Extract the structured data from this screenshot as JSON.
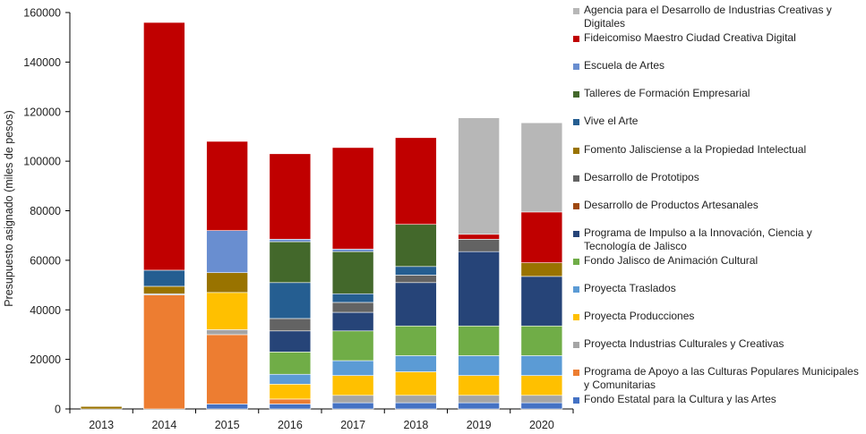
{
  "chart_data": {
    "type": "bar",
    "stacked": true,
    "title": "",
    "xlabel": "",
    "ylabel": "Presupuesto asignado (miles de pesos)",
    "ylim": [
      0,
      160000
    ],
    "yticks": [
      0,
      20000,
      40000,
      60000,
      80000,
      100000,
      120000,
      140000,
      160000
    ],
    "ytick_labels": [
      "0",
      "20000",
      "40000",
      "60000",
      "80000",
      "100000",
      "120000",
      "140000",
      "160000"
    ],
    "grid": false,
    "legend_position": "right",
    "categories": [
      "2013",
      "2014",
      "2015",
      "2016",
      "2017",
      "2018",
      "2019",
      "2020"
    ],
    "series": [
      {
        "name": "Fondo Estatal para la Cultura y las Artes",
        "color": "#4472c4",
        "values": [
          0,
          0,
          2000,
          2000,
          2500,
          2500,
          2500,
          2500
        ]
      },
      {
        "name": "Programa de Apoyo a las Culturas Populares Municipales y Comunitarias",
        "color": "#ed7d31",
        "values": [
          0,
          46000,
          28000,
          2000,
          0,
          0,
          0,
          0
        ]
      },
      {
        "name": "Proyecta Industrias Culturales y Creativas",
        "color": "#a5a5a5",
        "values": [
          0,
          500,
          2000,
          0,
          3000,
          3000,
          3000,
          3000
        ]
      },
      {
        "name": "Proyecta Producciones",
        "color": "#ffc000",
        "values": [
          0,
          0,
          15000,
          6000,
          8000,
          9500,
          8000,
          8000
        ]
      },
      {
        "name": "Proyecta Traslados",
        "color": "#5b9bd5",
        "values": [
          0,
          0,
          0,
          4000,
          6000,
          6500,
          8000,
          8000
        ]
      },
      {
        "name": "Fondo Jalisco de Animación Cultural",
        "color": "#70ad47",
        "values": [
          0,
          0,
          0,
          9000,
          12000,
          12000,
          12000,
          12000
        ]
      },
      {
        "name": "Programa de Impulso a la Innovación, Ciencia y Tecnología de Jalisco",
        "color": "#264478",
        "values": [
          0,
          0,
          0,
          8500,
          7500,
          17500,
          30000,
          20000
        ]
      },
      {
        "name": "Desarrollo de Productos Artesanales",
        "color": "#9e480e",
        "values": [
          0,
          0,
          0,
          0,
          0,
          0,
          0,
          0
        ]
      },
      {
        "name": "Desarrollo de Prototipos",
        "color": "#636363",
        "values": [
          0,
          0,
          0,
          5000,
          4000,
          3000,
          5000,
          0
        ]
      },
      {
        "name": "Fomento Jalisciense a la Propiedad Intelectual",
        "color": "#997300",
        "values": [
          1000,
          3000,
          8000,
          0,
          0,
          0,
          0,
          5500
        ]
      },
      {
        "name": "Vive el Arte",
        "color": "#255e91",
        "values": [
          0,
          6500,
          0,
          14500,
          3500,
          3500,
          0,
          0
        ]
      },
      {
        "name": "Talleres de Formación Empresarial",
        "color": "#43682b",
        "values": [
          0,
          0,
          0,
          16500,
          17000,
          17000,
          0,
          0
        ]
      },
      {
        "name": "Escuela de Artes",
        "color": "#698ed0",
        "values": [
          0,
          0,
          17000,
          1000,
          1000,
          0,
          0,
          0
        ]
      },
      {
        "name": "Fideicomiso Maestro Ciudad Creativa Digital",
        "color": "#c00000",
        "values": [
          0,
          100000,
          36000,
          34500,
          41000,
          35000,
          2000,
          20500
        ]
      },
      {
        "name": "Agencia para el Desarrollo de Industrias Creativas y Digitales",
        "color": "#b7b7b7",
        "values": [
          0,
          0,
          0,
          0,
          0,
          0,
          47000,
          36000
        ]
      }
    ],
    "legend_order": [
      "Agencia para el Desarrollo de Industrias Creativas y Digitales",
      "Fideicomiso Maestro Ciudad Creativa Digital",
      "Escuela de Artes",
      "Talleres de Formación Empresarial",
      "Vive el Arte",
      "Fomento Jalisciense a la Propiedad Intelectual",
      "Desarrollo de Prototipos",
      "Desarrollo de Productos Artesanales",
      "Programa de Impulso a la Innovación, Ciencia y Tecnología de Jalisco",
      "Fondo Jalisco de Animación Cultural",
      "Proyecta Traslados",
      "Proyecta Producciones",
      "Proyecta Industrias Culturales y Creativas",
      "Programa de Apoyo a las Culturas Populares Municipales y Comunitarias",
      "Fondo Estatal para la Cultura y las Artes"
    ]
  }
}
